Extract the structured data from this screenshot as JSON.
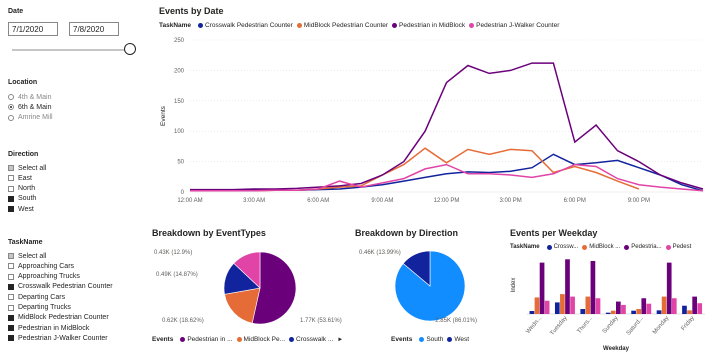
{
  "date_slicer": {
    "title": "Date",
    "start": "7/1/2020",
    "end": "7/8/2020"
  },
  "location": {
    "title": "Location",
    "items": [
      {
        "label": "4th & Main",
        "state": "off",
        "dim": true
      },
      {
        "label": "6th & Main",
        "state": "on",
        "dim": false
      },
      {
        "label": "Amrine Mill",
        "state": "off",
        "dim": true
      }
    ]
  },
  "direction": {
    "title": "Direction",
    "items": [
      {
        "label": "Select all",
        "state": "half"
      },
      {
        "label": "East",
        "state": "off"
      },
      {
        "label": "North",
        "state": "off"
      },
      {
        "label": "South",
        "state": "on"
      },
      {
        "label": "West",
        "state": "on"
      }
    ]
  },
  "taskname": {
    "title": "TaskName",
    "items": [
      {
        "label": "Select all",
        "state": "half"
      },
      {
        "label": "Approaching Cars",
        "state": "off"
      },
      {
        "label": "Approaching Trucks",
        "state": "off"
      },
      {
        "label": "Crosswalk Pedestrian Counter",
        "state": "on"
      },
      {
        "label": "Departing Cars",
        "state": "off"
      },
      {
        "label": "Departing Trucks",
        "state": "off"
      },
      {
        "label": "MidBlock Pedestrian Counter",
        "state": "on"
      },
      {
        "label": "Pedestrian in MidBlock",
        "state": "on"
      },
      {
        "label": "Pedestrian J-Walker Counter",
        "state": "on"
      }
    ]
  },
  "colors": {
    "crosswalk": "#12239E",
    "midblock": "#E66C37",
    "pedestrian": "#6B007B",
    "jwalker": "#E044A7",
    "south": "#118DFF",
    "west": "#12239E"
  },
  "events_by_date": {
    "title": "Events by Date",
    "legend_title": "TaskName",
    "ylabel": "Events",
    "chart_data": {
      "type": "line",
      "yticks": [
        "0",
        "50",
        "100",
        "150",
        "200",
        "250"
      ],
      "ylim": [
        0,
        250
      ],
      "xticks": [
        "12:00 AM",
        "3:00 AM",
        "6:00 AM",
        "9:00 AM",
        "12:00 PM",
        "3:00 PM",
        "6:00 PM",
        "9:00 PM"
      ],
      "series": [
        {
          "name": "Crosswalk Pedestrian Counter",
          "color": "#12239E",
          "values": [
            3,
            3,
            3,
            3,
            3,
            3,
            4,
            5,
            8,
            12,
            18,
            24,
            30,
            33,
            32,
            34,
            40,
            62,
            45,
            48,
            52,
            40,
            28,
            12,
            2
          ]
        },
        {
          "name": "MidBlock Pedestrian Counter",
          "color": "#E66C37",
          "values": [
            2,
            2,
            2,
            2,
            3,
            3,
            5,
            8,
            10,
            28,
            45,
            72,
            48,
            70,
            62,
            70,
            68,
            32,
            42,
            32,
            18,
            5,
            null,
            null,
            null
          ]
        },
        {
          "name": "Pedestrian in MidBlock",
          "color": "#6B007B",
          "values": [
            4,
            4,
            4,
            5,
            5,
            6,
            8,
            10,
            14,
            28,
            50,
            100,
            180,
            208,
            195,
            200,
            212,
            212,
            82,
            110,
            68,
            50,
            28,
            15,
            5
          ]
        },
        {
          "name": "Pedestrian J-Walker Counter",
          "color": "#E044A7",
          "values": [
            2,
            2,
            2,
            2,
            3,
            3,
            5,
            18,
            8,
            15,
            22,
            38,
            45,
            30,
            30,
            28,
            24,
            30,
            45,
            42,
            22,
            12,
            8,
            5,
            2
          ]
        }
      ]
    }
  },
  "event_types": {
    "title": "Breakdown by EventTypes",
    "legend_title": "Events",
    "chart_data": {
      "type": "pie",
      "slices": [
        {
          "label": "Pedestrian in ...",
          "value": 1770,
          "display": "1.77K (53.61%)",
          "color": "#6B007B"
        },
        {
          "label": "MidBlock Pe...",
          "value": 620,
          "display": "0.62K (18.62%)",
          "color": "#E66C37"
        },
        {
          "label": "Crosswalk ...",
          "value": 490,
          "display": "0.49K (14.87%)",
          "color": "#12239E"
        },
        {
          "label": "Pedestrian J-Walker Counter",
          "value": 430,
          "display": "0.43K (12.9%)",
          "color": "#E044A7"
        }
      ]
    }
  },
  "direction_breakdown": {
    "title": "Breakdown by Direction",
    "legend_title": "Events",
    "chart_data": {
      "type": "pie",
      "slices": [
        {
          "label": "South",
          "value": 2850,
          "display": "2.85K (86.01%)",
          "color": "#118DFF"
        },
        {
          "label": "West",
          "value": 460,
          "display": "0.46K (13.99%)",
          "color": "#12239E"
        }
      ]
    }
  },
  "weekday": {
    "title": "Events per Weekday",
    "legend_title": "TaskName",
    "legend_items": [
      "Crossw...",
      "MidBlock ...",
      "Pedestria...",
      "Pedest"
    ],
    "ylabel": "Index",
    "xlabel": "Weekday",
    "chart_data": {
      "type": "bar",
      "categories": [
        "Wedn...",
        "Tuesday",
        "Thurs...",
        "Sunday",
        "Saturd...",
        "Monday",
        "Friday"
      ],
      "series": [
        {
          "name": "Crossw...",
          "color": "#12239E",
          "values": [
            18,
            70,
            30,
            8,
            20,
            22,
            50
          ]
        },
        {
          "name": "MidBlock ...",
          "color": "#E66C37",
          "values": [
            100,
            120,
            105,
            20,
            30,
            105,
            22
          ]
        },
        {
          "name": "Pedestria...",
          "color": "#6B007B",
          "values": [
            310,
            330,
            320,
            75,
            95,
            310,
            105
          ]
        },
        {
          "name": "Pedest",
          "color": "#E044A7",
          "values": [
            80,
            105,
            95,
            55,
            62,
            95,
            65
          ]
        }
      ],
      "ylim": [
        0,
        350
      ]
    }
  }
}
